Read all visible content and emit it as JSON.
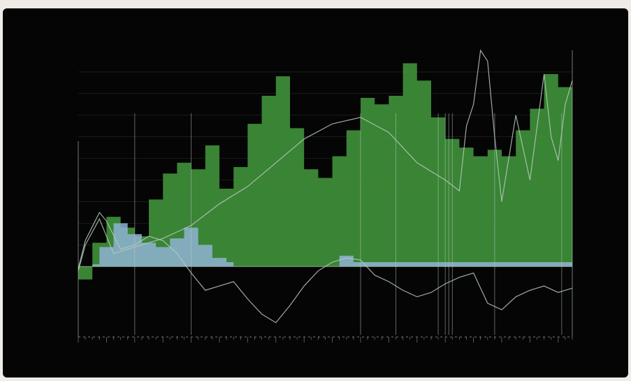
{
  "colors": {
    "background": "#050505",
    "green_area": "#3f8f39",
    "blue_area": "#8fb3d2",
    "lines": "#b9c9c0",
    "text": "#a7b9a3"
  },
  "legend": [],
  "annotations": [],
  "chart_data": {
    "type": "area",
    "title": "",
    "xlabel": "",
    "ylabel": "",
    "grid": true,
    "legend_placement": "top-left",
    "xlim": [
      0,
      70
    ],
    "ylim": [
      -60,
      200
    ],
    "series": [
      {
        "kind": "area",
        "color": "#3f8f39",
        "x": [
          0,
          2,
          4,
          6,
          8,
          10,
          12,
          14,
          16,
          18,
          20,
          22,
          24,
          26,
          28,
          30,
          32,
          34,
          36,
          38,
          40,
          42,
          44,
          46,
          48,
          50,
          52,
          54,
          56,
          58,
          60,
          62,
          64,
          66,
          68,
          70
        ],
        "values": [
          -12,
          22,
          46,
          36,
          28,
          62,
          86,
          96,
          90,
          112,
          72,
          92,
          132,
          158,
          176,
          128,
          90,
          82,
          102,
          126,
          156,
          150,
          158,
          188,
          172,
          138,
          118,
          110,
          102,
          108,
          102,
          126,
          146,
          178,
          166,
          162
        ]
      },
      {
        "kind": "area",
        "color": "#8fb3d2",
        "x": [
          0,
          2,
          3,
          5,
          7,
          9,
          11,
          13,
          15,
          17,
          19,
          21,
          22,
          25,
          27,
          29,
          31,
          35,
          37,
          39,
          70
        ],
        "values": [
          0,
          2,
          18,
          40,
          30,
          22,
          18,
          26,
          36,
          20,
          8,
          4,
          0,
          0,
          0,
          0,
          0,
          0,
          10,
          4,
          0
        ]
      },
      {
        "kind": "line",
        "color": "#b9c9c0",
        "x": [
          0,
          1,
          3,
          4,
          6,
          8,
          10,
          12,
          14,
          16,
          18,
          20,
          22,
          24,
          26,
          28,
          30,
          32,
          34,
          36,
          38,
          40,
          42,
          44,
          46,
          48,
          50,
          52,
          54,
          56,
          58,
          60,
          62,
          64,
          66,
          68,
          70
        ],
        "values": [
          -2,
          24,
          50,
          42,
          16,
          20,
          28,
          24,
          12,
          -6,
          -22,
          -18,
          -14,
          -30,
          -44,
          -52,
          -36,
          -18,
          -4,
          4,
          8,
          6,
          -8,
          -14,
          -22,
          -28,
          -24,
          -16,
          -10,
          -6,
          -34,
          -40,
          -28,
          -22,
          -18,
          -24,
          -20
        ]
      },
      {
        "kind": "line",
        "color": "#b9c9c0",
        "x": [
          0,
          1,
          3,
          5,
          8,
          12,
          16,
          20,
          24,
          28,
          32,
          36,
          40,
          44,
          48,
          52,
          54,
          55,
          56,
          57,
          58,
          59,
          60,
          62,
          64,
          66,
          67,
          68,
          69,
          70
        ],
        "values": [
          -4,
          20,
          44,
          12,
          18,
          26,
          38,
          58,
          74,
          96,
          118,
          132,
          138,
          124,
          96,
          80,
          70,
          130,
          150,
          200,
          190,
          120,
          60,
          140,
          80,
          178,
          120,
          98,
          150,
          172
        ]
      }
    ]
  }
}
